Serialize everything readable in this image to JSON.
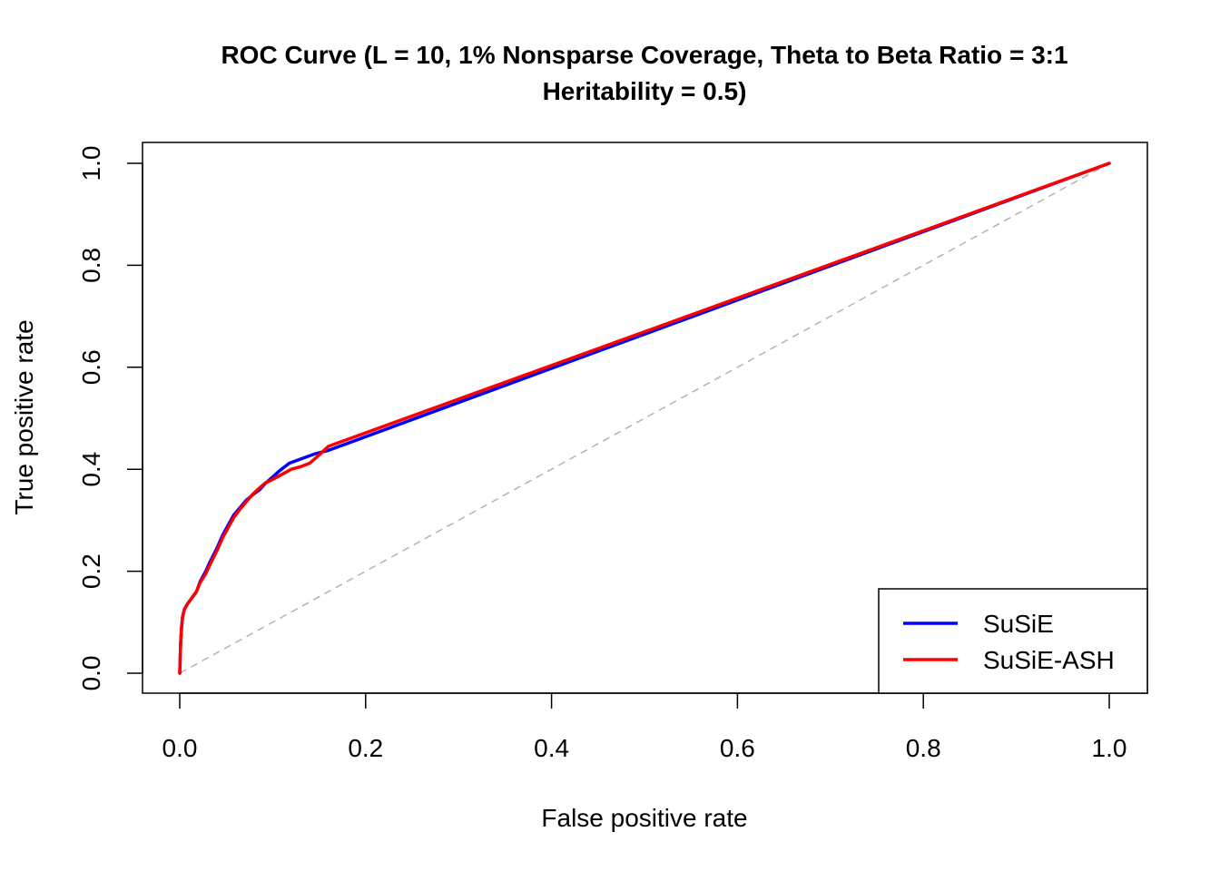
{
  "chart_data": {
    "type": "line",
    "title_line1": "ROC Curve (L = 10, 1% Nonsparse Coverage, Theta to Beta Ratio = 3:1",
    "title_line2": "Heritability = 0.5)",
    "xlabel": "False positive rate",
    "ylabel": "True positive rate",
    "xlim": [
      0,
      1
    ],
    "ylim": [
      0,
      1
    ],
    "x_ticks": [
      0.0,
      0.2,
      0.4,
      0.6,
      0.8,
      1.0
    ],
    "x_tick_labels": [
      "0.0",
      "0.2",
      "0.4",
      "0.6",
      "0.8",
      "1.0"
    ],
    "y_ticks": [
      0.0,
      0.2,
      0.4,
      0.6,
      0.8,
      1.0
    ],
    "y_tick_labels": [
      "0.0",
      "0.2",
      "0.4",
      "0.6",
      "0.8",
      "1.0"
    ],
    "grid": false,
    "legend_position": "bottom-right",
    "reference_line": {
      "from": [
        0,
        0
      ],
      "to": [
        1,
        1
      ],
      "color": "#b3b3b3",
      "style": "dashed"
    },
    "series": [
      {
        "name": "SuSiE",
        "color": "#0000ff",
        "x": [
          0,
          0.0005,
          0.001,
          0.002,
          0.003,
          0.005,
          0.008,
          0.012,
          0.018,
          0.022,
          0.028,
          0.033,
          0.04,
          0.046,
          0.052,
          0.058,
          0.065,
          0.072,
          0.08,
          0.086,
          0.092,
          0.1,
          0.108,
          0.118,
          0.13,
          0.145,
          0.16,
          1.0
        ],
        "y": [
          0,
          0.03,
          0.06,
          0.09,
          0.11,
          0.125,
          0.135,
          0.145,
          0.16,
          0.18,
          0.2,
          0.22,
          0.245,
          0.27,
          0.29,
          0.31,
          0.325,
          0.34,
          0.352,
          0.36,
          0.372,
          0.385,
          0.398,
          0.412,
          0.42,
          0.43,
          0.437,
          1.0
        ]
      },
      {
        "name": "SuSiE-ASH",
        "color": "#ff0000",
        "x": [
          0,
          0.0005,
          0.001,
          0.002,
          0.003,
          0.005,
          0.008,
          0.012,
          0.018,
          0.022,
          0.028,
          0.033,
          0.04,
          0.046,
          0.052,
          0.058,
          0.065,
          0.072,
          0.078,
          0.085,
          0.092,
          0.1,
          0.11,
          0.12,
          0.13,
          0.14,
          0.15,
          0.16,
          1.0
        ],
        "y": [
          0,
          0.03,
          0.06,
          0.09,
          0.11,
          0.125,
          0.135,
          0.145,
          0.16,
          0.178,
          0.195,
          0.215,
          0.24,
          0.265,
          0.285,
          0.305,
          0.322,
          0.337,
          0.35,
          0.362,
          0.373,
          0.38,
          0.39,
          0.4,
          0.405,
          0.412,
          0.428,
          0.445,
          1.0
        ]
      }
    ]
  }
}
